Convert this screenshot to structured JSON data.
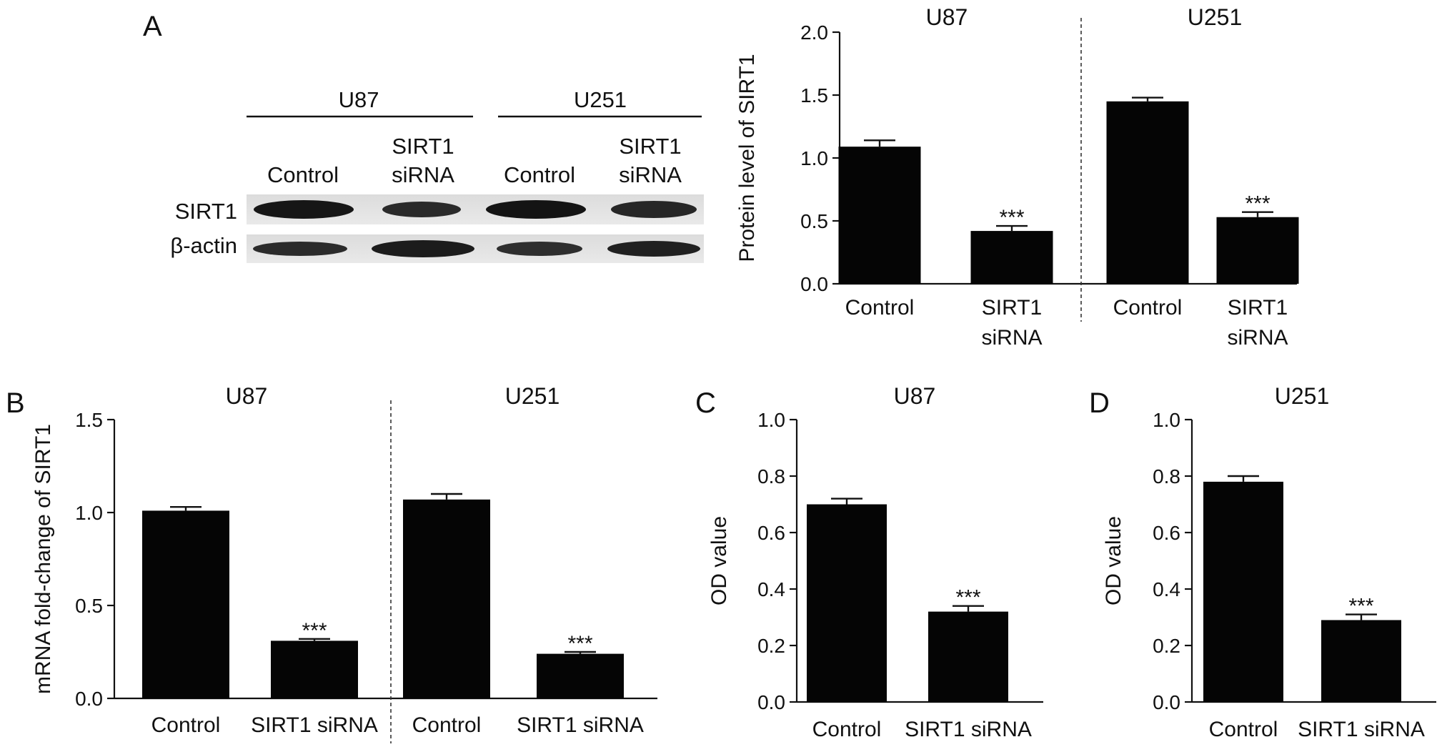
{
  "panels": {
    "a": "A",
    "b": "B",
    "c": "C",
    "d": "D"
  },
  "blot": {
    "groups": [
      "U87",
      "U251"
    ],
    "lanes": [
      {
        "line1": "",
        "line2": "Control"
      },
      {
        "line1": "SIRT1",
        "line2": "siRNA"
      },
      {
        "line1": "",
        "line2": "Control"
      },
      {
        "line1": "SIRT1",
        "line2": "siRNA"
      }
    ],
    "rows": [
      "SIRT1",
      "β-actin"
    ]
  },
  "chart_data": [
    {
      "id": "A",
      "type": "bar",
      "groups": [
        "U87",
        "U251"
      ],
      "categories": [
        "Control",
        "SIRT1\nsiRNA",
        "Control",
        "SIRT1\nsiRNA"
      ],
      "values": [
        1.09,
        0.42,
        1.45,
        0.53
      ],
      "errors": [
        0.05,
        0.04,
        0.03,
        0.04
      ],
      "significance": [
        "",
        "***",
        "",
        "***"
      ],
      "ylabel": "Protein level of SIRT1",
      "ylim": [
        0,
        2.0
      ],
      "yticks": [
        "0.0",
        "0.5",
        "1.0",
        "1.5",
        "2.0"
      ]
    },
    {
      "id": "B",
      "type": "bar",
      "groups": [
        "U87",
        "U251"
      ],
      "categories": [
        "Control",
        "SIRT1 siRNA",
        "Control",
        "SIRT1 siRNA"
      ],
      "values": [
        1.01,
        0.31,
        1.07,
        0.24
      ],
      "errors": [
        0.02,
        0.01,
        0.03,
        0.01
      ],
      "significance": [
        "",
        "***",
        "",
        "***"
      ],
      "ylabel": "mRNA fold-change of SIRT1",
      "ylim": [
        0,
        1.5
      ],
      "yticks": [
        "0.0",
        "0.5",
        "1.0",
        "1.5"
      ]
    },
    {
      "id": "C",
      "type": "bar",
      "title": "U87",
      "categories": [
        "Control",
        "SIRT1 siRNA"
      ],
      "values": [
        0.7,
        0.32
      ],
      "errors": [
        0.02,
        0.02
      ],
      "significance": [
        "",
        "***"
      ],
      "ylabel": "OD value",
      "ylim": [
        0,
        1.0
      ],
      "yticks": [
        "0.0",
        "0.2",
        "0.4",
        "0.6",
        "0.8",
        "1.0"
      ]
    },
    {
      "id": "D",
      "type": "bar",
      "title": "U251",
      "categories": [
        "Control",
        "SIRT1 siRNA"
      ],
      "values": [
        0.78,
        0.29
      ],
      "errors": [
        0.02,
        0.02
      ],
      "significance": [
        "",
        "***"
      ],
      "ylabel": "OD value",
      "ylim": [
        0,
        1.0
      ],
      "yticks": [
        "0.0",
        "0.2",
        "0.4",
        "0.6",
        "0.8",
        "1.0"
      ]
    }
  ]
}
